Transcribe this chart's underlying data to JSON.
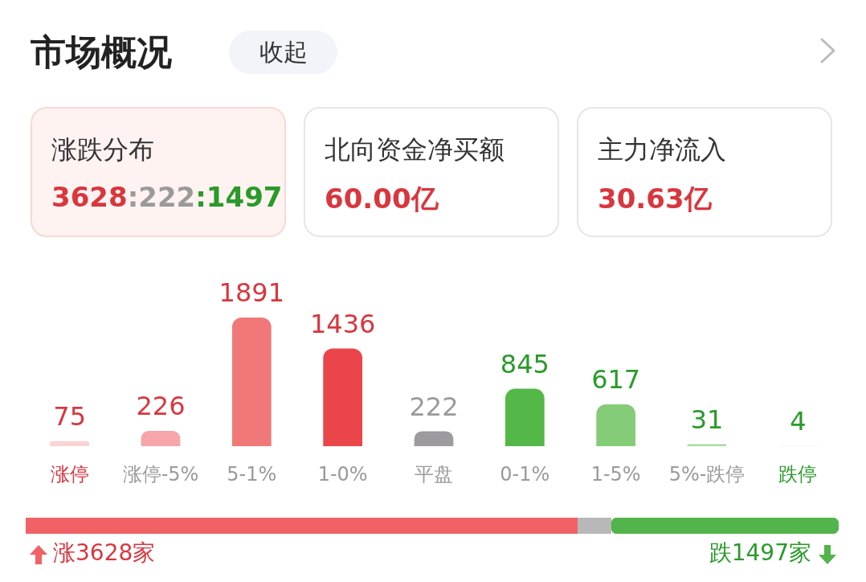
{
  "chart_data": [
    {
      "type": "other",
      "title": "市场概况",
      "annotations": [
        "收起",
        "涨跌分布",
        "3628:222:1497",
        "北向资金净买额",
        "60.00亿",
        "主力净流入",
        "30.63亿"
      ]
    },
    {
      "type": "bar",
      "categories": [
        "涨停",
        "涨停-5%",
        "5-1%",
        "1-0%",
        "平盘",
        "0-1%",
        "1-5%",
        "5%-跌停",
        "跌停"
      ],
      "values": [
        75,
        226,
        1891,
        1436,
        222,
        845,
        617,
        31,
        4
      ],
      "colors": [
        "#fbd3d4",
        "#f6a5a8",
        "#f07878",
        "#e9454b",
        "#9d9b9f",
        "#53b847",
        "#85cc78",
        "#a9dca0",
        "#d7efd3"
      ],
      "data_labels": true
    },
    {
      "type": "bar",
      "orientation": "horizontal",
      "stacked": true,
      "categories": [
        null
      ],
      "series": [
        {
          "color": "#f06266",
          "values": [
            3628
          ],
          "value_labels": [
            "涨3628家"
          ]
        },
        {
          "color": "#b8b8b8",
          "values": [
            222
          ]
        },
        {
          "color": "#52b44b",
          "values": [
            1497
          ],
          "value_labels": [
            "跌1497家"
          ]
        }
      ]
    }
  ]
}
